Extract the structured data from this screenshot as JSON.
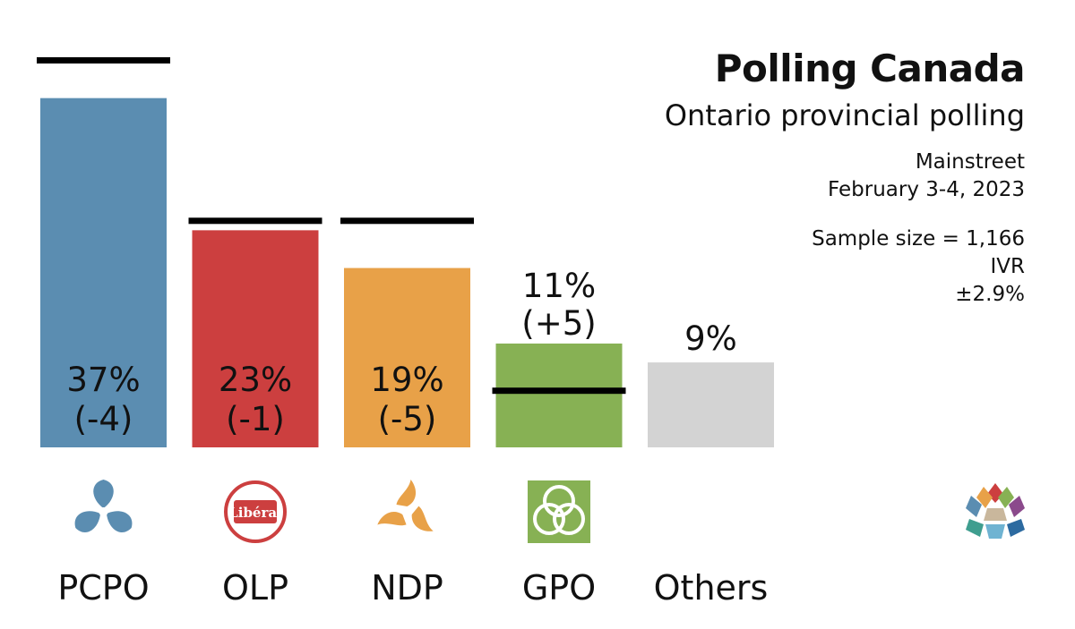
{
  "header": {
    "title": "Polling Canada",
    "subtitle": "Ontario provincial polling",
    "pollster": "Mainstreet",
    "dates": "February 3-4, 2023",
    "sample_size": "Sample size = 1,166",
    "method": "IVR",
    "margin": "±2.9%"
  },
  "chart_data": {
    "type": "bar",
    "categories": [
      "PCPO",
      "OLP",
      "NDP",
      "GPO",
      "Others"
    ],
    "values": [
      37,
      23,
      19,
      11,
      9
    ],
    "changes": [
      -4,
      -1,
      -5,
      5,
      null
    ],
    "previous": [
      41,
      24,
      24,
      6,
      null
    ],
    "value_labels": [
      "37%",
      "23%",
      "19%",
      "11%",
      "9%"
    ],
    "change_labels": [
      "(-4)",
      "(-1)",
      "(-5)",
      "(+5)",
      ""
    ],
    "colors": [
      "#5b8db1",
      "#cc3f3f",
      "#e8a148",
      "#87b154",
      "#d3d3d3"
    ],
    "icons": [
      "trillium-icon",
      "liberal-roundel-icon",
      "ndp-trillium-icon",
      "green-trillium-icon",
      ""
    ],
    "ylim": [
      0,
      45
    ],
    "title": "",
    "xlabel": "",
    "ylabel": ""
  }
}
